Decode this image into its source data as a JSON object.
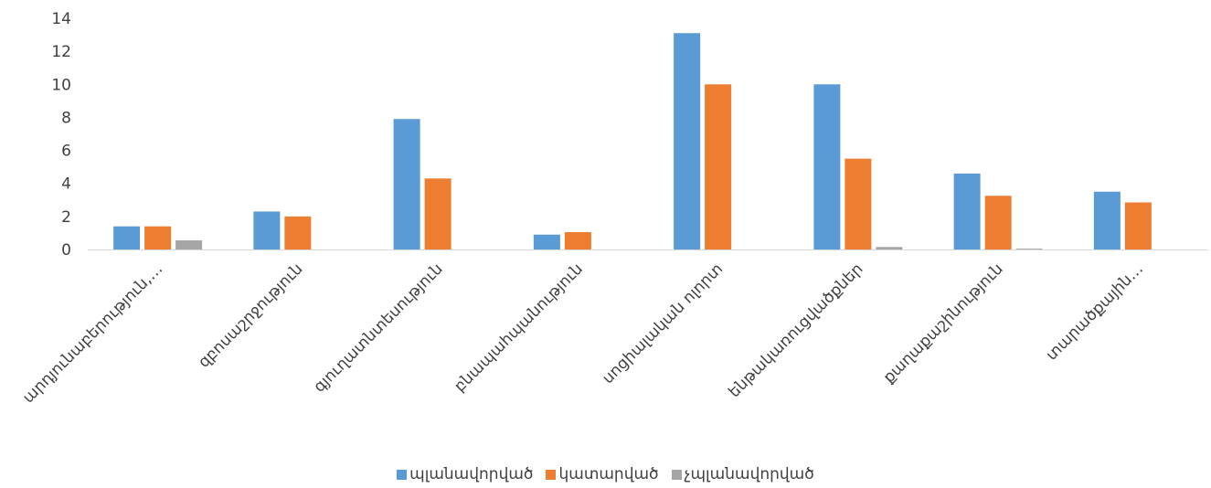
{
  "chart_data": {
    "type": "bar",
    "categories": [
      "արդյունաբերություն,…",
      "զբոսաշրջություն",
      "գյուղատնտեսություն",
      "բնապահպանություն",
      "սոցիալական ոլորտ",
      "ենթակառուցվածքներ",
      "քաղաքաշինություն",
      "տարածքային…"
    ],
    "series": [
      {
        "name": "պլանավորված",
        "color": "#5B9BD5",
        "values": [
          1.4,
          2.3,
          7.9,
          0.9,
          13.1,
          10.0,
          4.6,
          3.5
        ]
      },
      {
        "name": "կատարված",
        "color": "#ED7D31",
        "values": [
          1.4,
          2.0,
          4.3,
          1.05,
          10.0,
          5.5,
          3.25,
          2.85
        ]
      },
      {
        "name": "չպլանավորված",
        "color": "#A5A5A5",
        "values": [
          0.55,
          0.0,
          0.0,
          0.0,
          0.0,
          0.15,
          0.05,
          0.0
        ]
      }
    ],
    "y_ticks": [
      "0",
      "2",
      "4",
      "6",
      "8",
      "10",
      "12",
      "14"
    ],
    "ylim": [
      0,
      14
    ],
    "grid": false,
    "legend_position": "bottom"
  }
}
